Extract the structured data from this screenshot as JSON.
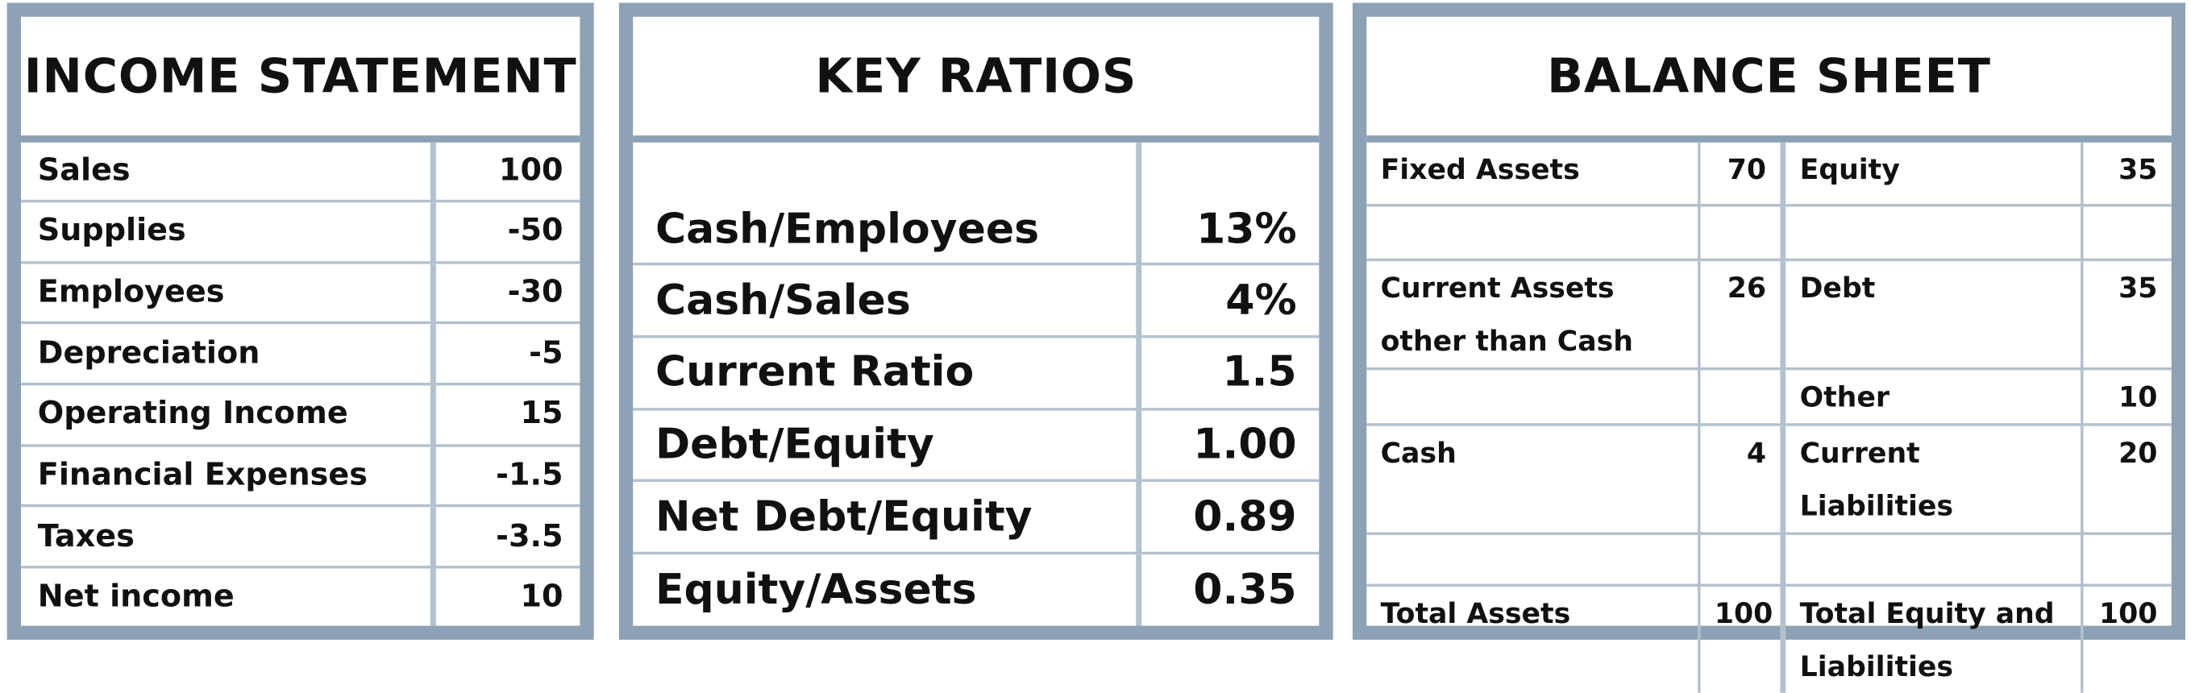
{
  "income_statement": {
    "title": "INCOME STATEMENT",
    "rows": [
      [
        "Sales",
        "100"
      ],
      [
        "Supplies",
        "-50"
      ],
      [
        "Employees",
        "-30"
      ],
      [
        "Depreciation",
        "-5"
      ],
      [
        "Operating Income",
        "15"
      ],
      [
        "Financial Expenses",
        "-1.5"
      ],
      [
        "Taxes",
        "-3.5"
      ],
      [
        "Net income",
        "10"
      ]
    ]
  },
  "key_ratios": {
    "title": "KEY RATIOS",
    "rows": [
      [
        "Cash/Employees",
        "13%"
      ],
      [
        "Cash/Sales",
        "4%"
      ],
      [
        "Current Ratio",
        "1.5"
      ],
      [
        "Debt/Equity",
        "1.00"
      ],
      [
        "Net Debt/Equity",
        "0.89"
      ],
      [
        "Equity/Assets",
        "0.35"
      ]
    ]
  },
  "balance_sheet": {
    "title": "BALANCE SHEET",
    "rows": [
      [
        "Fixed Assets",
        "70",
        "Equity",
        "35"
      ],
      [
        null,
        null,
        null,
        null
      ],
      [
        "Current Assets other than Cash",
        "26",
        "Debt",
        "35"
      ],
      [
        null,
        null,
        "Other",
        "10"
      ],
      [
        "Cash",
        "4",
        "Current Liabilities",
        "20"
      ],
      [
        null,
        null,
        null,
        null
      ],
      [
        "Total Assets",
        "100",
        "Total Equity and Liabilities",
        "100"
      ]
    ]
  }
}
